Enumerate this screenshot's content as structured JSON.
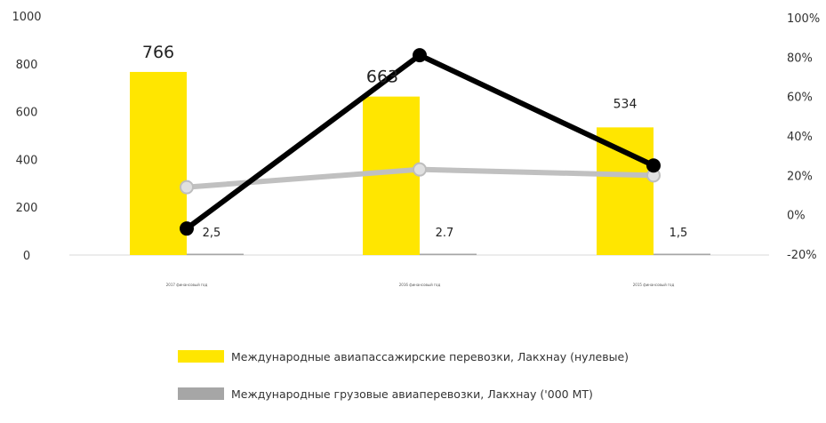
{
  "chart_data": {
    "type": "bar",
    "categories": [
      "2017 финансовый год",
      "2016 финансовый год",
      "2015 финансовый год"
    ],
    "series": [
      {
        "name": "Международные авиапассажирские перевозки, Лакхнау (нулевые)",
        "kind": "bar",
        "axis": "left",
        "values": [
          766,
          663,
          534
        ],
        "data_labels": [
          "766",
          "663",
          "534"
        ],
        "color": "#ffe600"
      },
      {
        "name": "Международные грузовые авиаперевозки, Лакхнау ('000 MT)",
        "kind": "bar",
        "axis": "left",
        "values": [
          2.5,
          2.7,
          1.5
        ],
        "data_labels": [
          "2,5",
          "2.7",
          "1,5"
        ],
        "color": "#a6a6a6"
      },
      {
        "kind": "line",
        "axis": "right",
        "values": [
          -7,
          81,
          25
        ],
        "color": "#000000"
      },
      {
        "kind": "line",
        "axis": "right",
        "values": [
          14,
          23,
          20
        ],
        "color": "#c0c0c0"
      }
    ],
    "y_left": {
      "min": 0,
      "max": 1000,
      "ticks": [
        "0",
        "200",
        "400",
        "600",
        "800",
        "1000"
      ]
    },
    "y_right": {
      "min": -20,
      "max": 100,
      "ticks": [
        "-20%",
        "0%",
        "20%",
        "40%",
        "60%",
        "80%",
        "100%"
      ]
    },
    "legend_position": "bottom",
    "grid": false
  },
  "legend": {
    "items": [
      {
        "label": "Международные авиапассажирские перевозки, Лакхнау (нулевые)",
        "color": "#ffe600"
      },
      {
        "label": "Международные грузовые авиаперевозки, Лакхнау ('000 MT)",
        "color": "#a6a6a6"
      }
    ]
  }
}
